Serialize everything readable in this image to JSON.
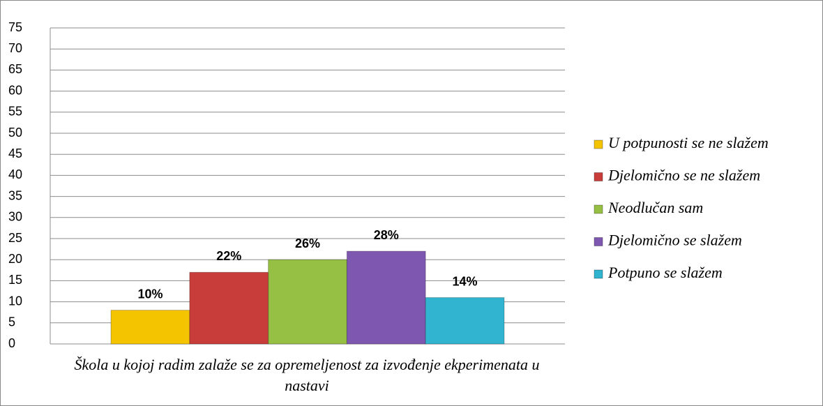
{
  "chart_data": {
    "type": "bar",
    "categories": [
      "Škola u kojoj radim zalaže se za opremeljenost za izvođenje ekperimenata u nastavi"
    ],
    "series": [
      {
        "name": "U potpunosti se ne slažem",
        "color": "#f5c400",
        "values": [
          8
        ]
      },
      {
        "name": "Djelomično se ne slažem",
        "color": "#c83c3a",
        "values": [
          17
        ]
      },
      {
        "name": "Neodlučan sam",
        "color": "#96c043",
        "values": [
          20
        ]
      },
      {
        "name": "Djelomično se slažem",
        "color": "#7e57b0",
        "values": [
          22
        ]
      },
      {
        "name": "Potpuno se slažem",
        "color": "#30b4cf",
        "values": [
          11
        ]
      }
    ],
    "shares": [
      10,
      22,
      26,
      28,
      14
    ],
    "share_labels": [
      "10%",
      "22%",
      "26%",
      "28%",
      "14%"
    ],
    "ylim": [
      0,
      75
    ],
    "yticks": [
      0,
      5,
      10,
      15,
      20,
      25,
      30,
      35,
      40,
      45,
      50,
      55,
      60,
      65,
      70,
      75
    ],
    "grid": true,
    "legend": "right"
  }
}
